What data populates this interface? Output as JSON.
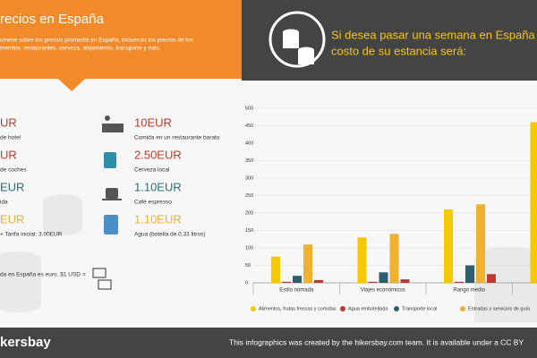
{
  "left_panel": {
    "title": "recios en España",
    "intro": [
      "omese sobre los precios promedio en España, incluendo los precios de los",
      "imentos, restaurantes, cerveza, alojamiento, transporte y más."
    ],
    "items": [
      {
        "price": "UR",
        "label": "de hotel",
        "color": "#c0392b"
      },
      {
        "price": "UR",
        "label": "de coches",
        "color": "#c0392b"
      },
      {
        "price": "EUR",
        "label": "ida",
        "color": "#2e6b7a"
      },
      {
        "price": "EUR",
        "label": "+ Tarifa inicial: 3.00EUR",
        "color": "#f0b030"
      },
      {
        "price": "10EUR",
        "label": "Comida en un restaurante barato",
        "color": "#c0392b"
      },
      {
        "price": "2.50EUR",
        "label": "Cerveza local",
        "color": "#c0392b"
      },
      {
        "price": "1.10EUR",
        "label": "Café espresso",
        "color": "#2e6b7a"
      },
      {
        "price": "1.10EUR",
        "label": "Agua (botella de 0,33 litros)",
        "color": "#f0b030"
      }
    ],
    "currency_note": "da en España es euro. $1 USD ="
  },
  "right_panel": {
    "heading": [
      "Si desea pasar una semana en España",
      "costo de su estancia será:"
    ]
  },
  "chart_data": {
    "type": "bar",
    "categories": [
      "Estilo nómada",
      "Viajes económicos",
      "Rango medio",
      null
    ],
    "series": [
      {
        "name": "Alimentos, frutas frescas y comidas",
        "color": "#f5c800",
        "values": [
          75,
          130,
          210,
          460
        ]
      },
      {
        "name": "Agua embotellada",
        "color": "#c0392b",
        "values": [
          3,
          3,
          3,
          null
        ]
      },
      {
        "name": "Transporte local",
        "color": "#2e5f6e",
        "values": [
          20,
          30,
          50,
          null
        ]
      },
      {
        "name": "Entradas y servicios de guía",
        "color": "#f0b030",
        "values": [
          110,
          140,
          225,
          null
        ]
      },
      {
        "name": null,
        "color": "#c0392b",
        "values": [
          8,
          10,
          25,
          null
        ]
      }
    ],
    "ylim": [
      0,
      500
    ],
    "yticks": [
      0,
      50,
      100,
      150,
      200,
      250,
      300,
      350,
      400,
      450,
      500
    ],
    "grid": true
  },
  "footer": {
    "brand": "kersbay",
    "credit": "This infographics was created by the hikersbay.com team. It is available under a CC BY"
  }
}
